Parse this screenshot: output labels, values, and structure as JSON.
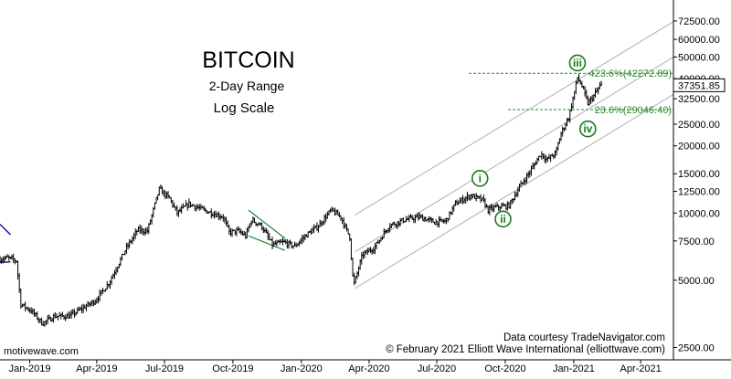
{
  "chart_data": {
    "type": "candlestick",
    "title": "BITCOIN",
    "subtitle": "2-Day Range",
    "scale_note": "Log Scale",
    "scale": "log",
    "ylim": [
      2200,
      90000
    ],
    "xlim": [
      "2018-11-22",
      "2021-05-15"
    ],
    "y_ticks": [
      {
        "value": 72500,
        "label": "72500.00"
      },
      {
        "value": 60000,
        "label": "60000.00"
      },
      {
        "value": 50000,
        "label": "50000.00"
      },
      {
        "value": 40000,
        "label": "40000.00"
      },
      {
        "value": 32500,
        "label": "32500.00"
      },
      {
        "value": 25000,
        "label": "25000.00"
      },
      {
        "value": 20000,
        "label": "20000.00"
      },
      {
        "value": 15000,
        "label": "15000.00"
      },
      {
        "value": 12500,
        "label": "12500.00"
      },
      {
        "value": 10000,
        "label": "10000.00"
      },
      {
        "value": 7500,
        "label": "7500.00"
      },
      {
        "value": 5000,
        "label": "5000.00"
      },
      {
        "value": 2500,
        "label": "2500.00"
      }
    ],
    "x_ticks": [
      {
        "date": "2019-01-01",
        "label": "Jan-2019"
      },
      {
        "date": "2019-04-01",
        "label": "Apr-2019"
      },
      {
        "date": "2019-07-01",
        "label": "Jul-2019"
      },
      {
        "date": "2019-10-01",
        "label": "Oct-2019"
      },
      {
        "date": "2020-01-01",
        "label": "Jan-2020"
      },
      {
        "date": "2020-04-01",
        "label": "Apr-2020"
      },
      {
        "date": "2020-07-01",
        "label": "Jul-2020"
      },
      {
        "date": "2020-10-01",
        "label": "Oct-2020"
      },
      {
        "date": "2021-01-01",
        "label": "Jan-2021"
      },
      {
        "date": "2021-04-01",
        "label": "Apr-2021"
      }
    ],
    "price_path": [
      [
        "2018-11-22",
        6200
      ],
      [
        "2018-12-05",
        6300
      ],
      [
        "2018-12-16",
        6100
      ],
      [
        "2018-12-22",
        3900
      ],
      [
        "2019-01-05",
        3650
      ],
      [
        "2019-01-20",
        3200
      ],
      [
        "2019-02-05",
        3450
      ],
      [
        "2019-02-25",
        3450
      ],
      [
        "2019-03-15",
        3750
      ],
      [
        "2019-04-01",
        4050
      ],
      [
        "2019-04-20",
        4900
      ],
      [
        "2019-05-12",
        6900
      ],
      [
        "2019-05-28",
        8400
      ],
      [
        "2019-06-10",
        8300
      ],
      [
        "2019-06-26",
        12800
      ],
      [
        "2019-07-10",
        11600
      ],
      [
        "2019-07-20",
        10000
      ],
      [
        "2019-08-05",
        11000
      ],
      [
        "2019-08-25",
        10300
      ],
      [
        "2019-09-20",
        9600
      ],
      [
        "2019-09-28",
        8200
      ],
      [
        "2019-10-10",
        8300
      ],
      [
        "2019-10-20",
        7900
      ],
      [
        "2019-10-28",
        9300
      ],
      [
        "2019-11-10",
        8800
      ],
      [
        "2019-11-25",
        7200
      ],
      [
        "2019-12-10",
        7400
      ],
      [
        "2019-12-25",
        7100
      ],
      [
        "2020-01-10",
        8000
      ],
      [
        "2020-01-25",
        8700
      ],
      [
        "2020-02-12",
        10300
      ],
      [
        "2020-02-25",
        9600
      ],
      [
        "2020-03-08",
        7800
      ],
      [
        "2020-03-13",
        4700
      ],
      [
        "2020-03-25",
        6500
      ],
      [
        "2020-04-10",
        7000
      ],
      [
        "2020-04-30",
        8800
      ],
      [
        "2020-05-20",
        9300
      ],
      [
        "2020-06-10",
        9600
      ],
      [
        "2020-06-30",
        9100
      ],
      [
        "2020-07-15",
        9200
      ],
      [
        "2020-07-28",
        11000
      ],
      [
        "2020-08-17",
        12000
      ],
      [
        "2020-09-03",
        11400
      ],
      [
        "2020-09-10",
        10300
      ],
      [
        "2020-09-20",
        10600
      ],
      [
        "2020-10-08",
        10800
      ],
      [
        "2020-10-21",
        12900
      ],
      [
        "2020-11-05",
        15300
      ],
      [
        "2020-11-20",
        18500
      ],
      [
        "2020-11-28",
        17300
      ],
      [
        "2020-12-10",
        18600
      ],
      [
        "2020-12-17",
        22800
      ],
      [
        "2020-12-27",
        26800
      ],
      [
        "2021-01-02",
        32500
      ],
      [
        "2021-01-08",
        40500
      ],
      [
        "2021-01-14",
        37000
      ],
      [
        "2021-01-22",
        31000
      ],
      [
        "2021-01-30",
        33500
      ],
      [
        "2021-02-08",
        37351.85
      ]
    ],
    "last_price_label": "37351.85",
    "fib_levels": [
      {
        "name": "423.6%",
        "value": 42272.89,
        "label": "423.6%(42272.89)"
      },
      {
        "name": "23.6%",
        "value": 29046.4,
        "label": "23.6%(29046.40)"
      }
    ],
    "wave_labels": [
      {
        "label": "i",
        "date": "2020-08-28",
        "value": 14300
      },
      {
        "label": "ii",
        "date": "2020-09-28",
        "value": 9400
      },
      {
        "label": "iii",
        "date": "2021-01-06",
        "value": 47000
      },
      {
        "label": "iv",
        "date": "2021-01-20",
        "value": 23800
      }
    ],
    "channel_lines": [
      {
        "points": [
          [
            "2020-03-13",
            4600
          ],
          [
            "2021-05-15",
            34000
          ]
        ]
      },
      {
        "points": [
          [
            "2020-03-13",
            6700
          ],
          [
            "2021-05-15",
            50000
          ]
        ]
      },
      {
        "points": [
          [
            "2020-03-13",
            9800
          ],
          [
            "2021-05-15",
            72000
          ]
        ]
      }
    ],
    "triangle_lines": [
      {
        "points": [
          [
            "2019-10-22",
            10300
          ],
          [
            "2019-12-10",
            7700
          ]
        ]
      },
      {
        "points": [
          [
            "2019-10-22",
            7900
          ],
          [
            "2019-12-10",
            6800
          ]
        ]
      }
    ],
    "left_wedge_lines": [
      {
        "points": [
          [
            "2018-11-22",
            8900
          ],
          [
            "2018-12-06",
            8000
          ]
        ]
      },
      {
        "points": [
          [
            "2018-11-22",
            6000
          ],
          [
            "2018-12-06",
            6050
          ]
        ]
      }
    ],
    "colors": {
      "bars": "#000000",
      "wave_labels": "#1a7a1a",
      "fib": "#2c8a2c",
      "channel": "#b0b0b0",
      "triangle": "#1a8a3a",
      "wedge": "#1a1aa0",
      "grid_border": "#000000"
    }
  },
  "watermark": "motivewave.com",
  "credits": {
    "line1": "Data courtesy TradeNavigator.com",
    "line2": "© February 2021 Elliott Wave International (elliottwave.com)"
  }
}
